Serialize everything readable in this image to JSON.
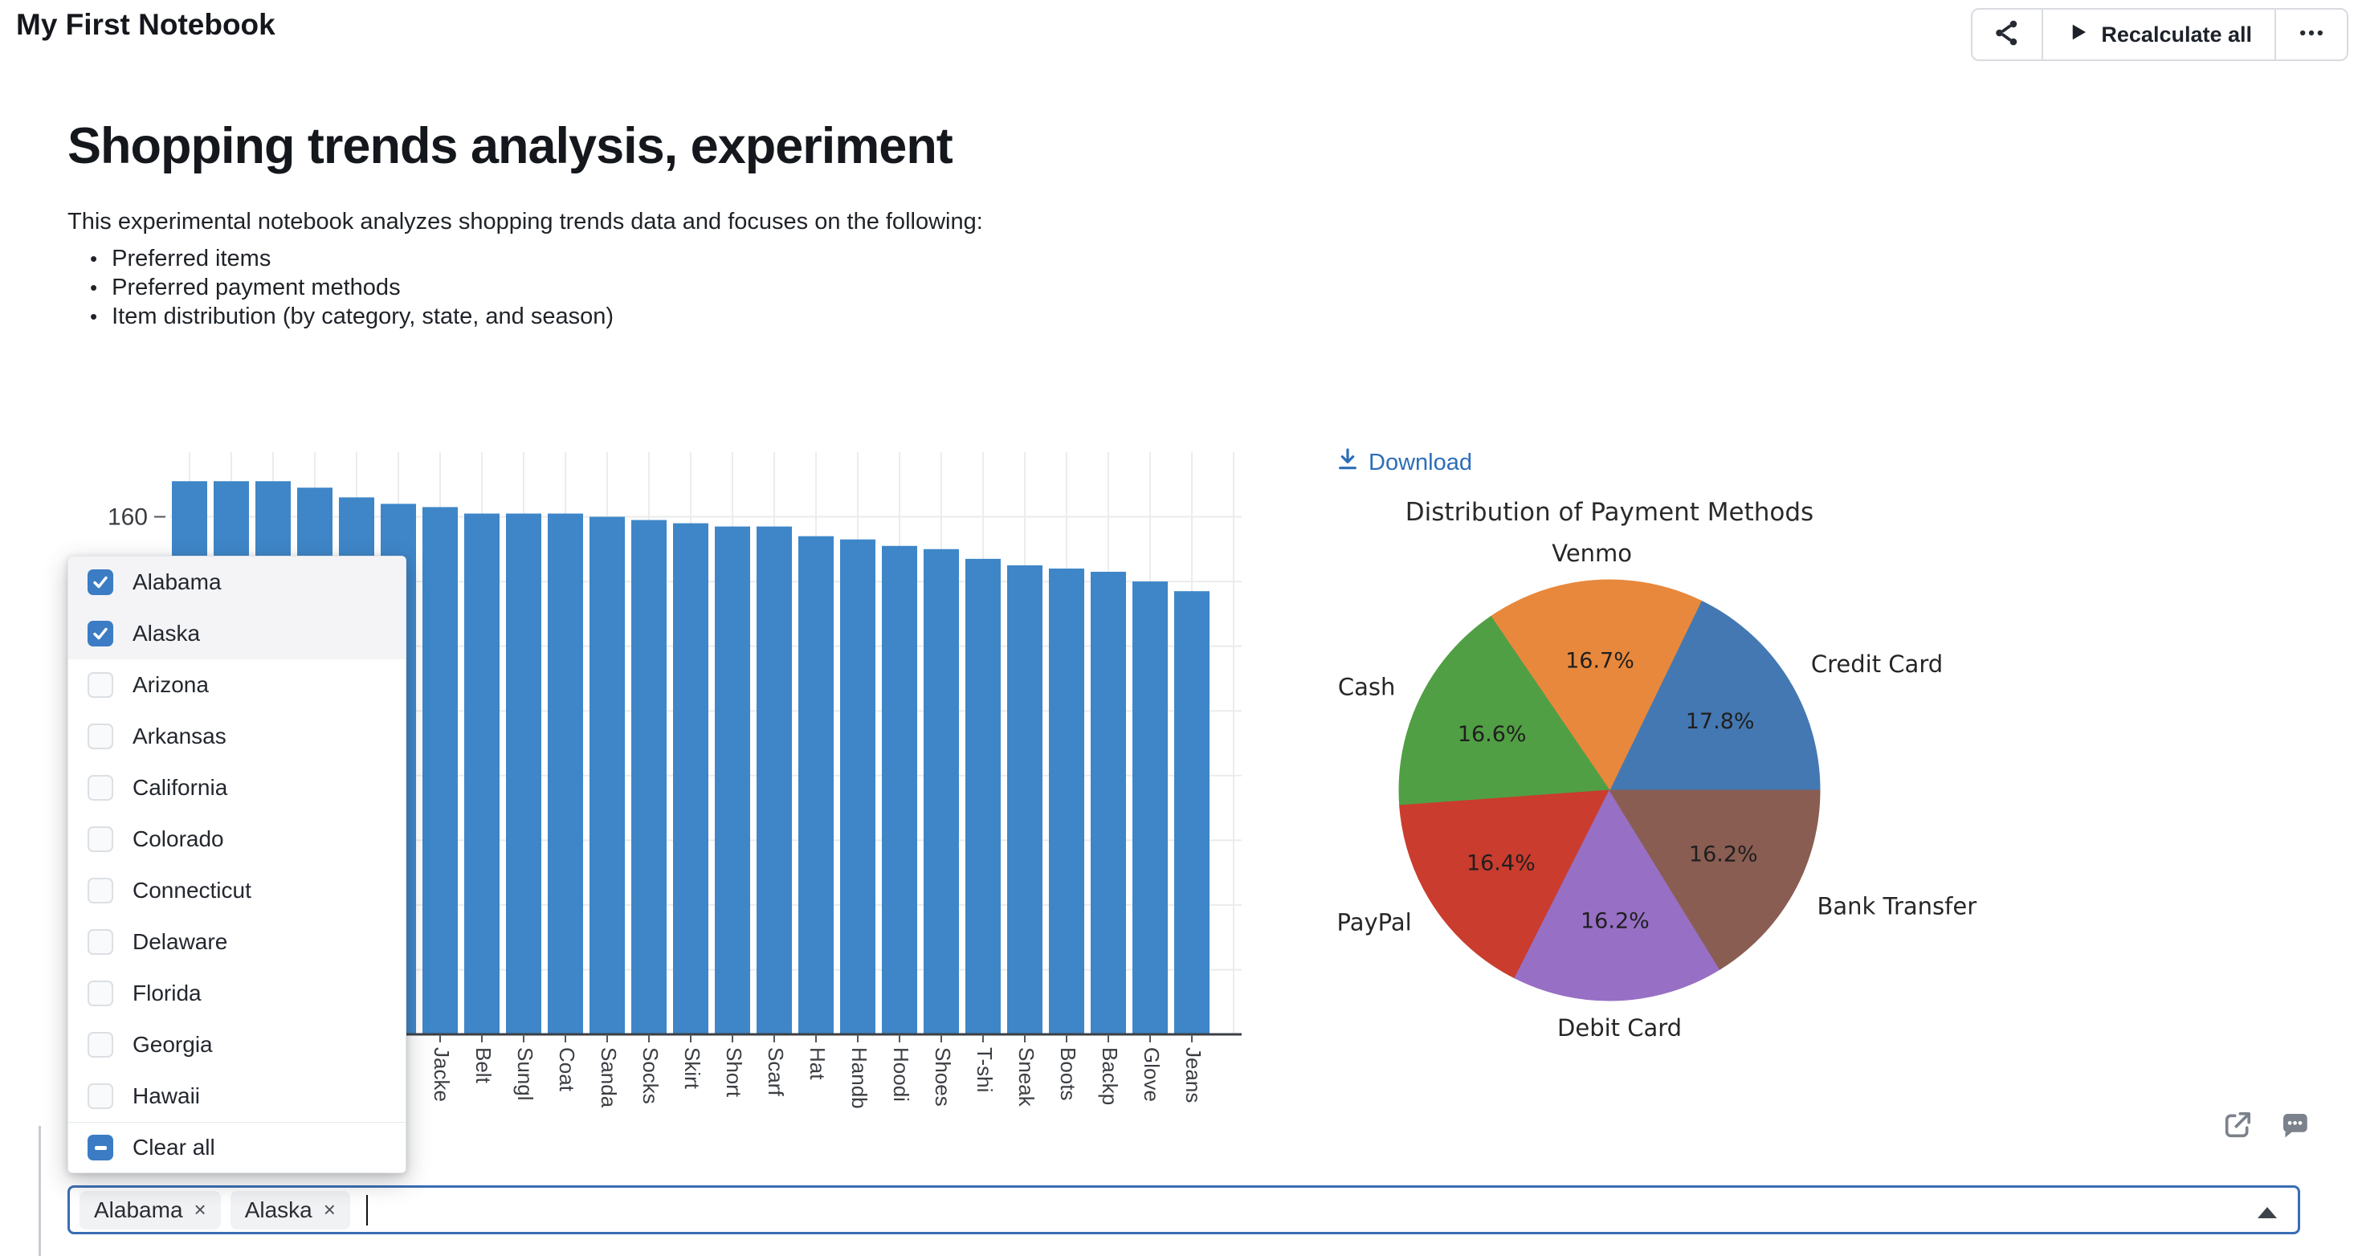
{
  "window": {
    "title": "My First Notebook"
  },
  "toolbar": {
    "share_icon": "share-icon",
    "recalculate_label": "Recalculate all",
    "more_icon": "ellipsis-icon"
  },
  "article": {
    "heading": "Shopping trends analysis, experiment",
    "intro": "This experimental notebook analyzes shopping trends data and focuses on the following:",
    "bullets": [
      "Preferred items",
      "Preferred payment methods",
      "Item distribution (by category, state, and season)"
    ]
  },
  "pie_panel": {
    "download_label": "Download"
  },
  "state_dropdown": {
    "options": [
      {
        "label": "Alabama",
        "checked": true
      },
      {
        "label": "Alaska",
        "checked": true
      },
      {
        "label": "Arizona",
        "checked": false
      },
      {
        "label": "Arkansas",
        "checked": false
      },
      {
        "label": "California",
        "checked": false
      },
      {
        "label": "Colorado",
        "checked": false
      },
      {
        "label": "Connecticut",
        "checked": false
      },
      {
        "label": "Delaware",
        "checked": false
      },
      {
        "label": "Florida",
        "checked": false
      },
      {
        "label": "Georgia",
        "checked": false
      },
      {
        "label": "Hawaii",
        "checked": false
      }
    ],
    "clear_all_label": "Clear all"
  },
  "state_select": {
    "tags": [
      "Alabama",
      "Alaska"
    ],
    "remove_symbol": "×"
  },
  "chart_data": [
    {
      "type": "bar",
      "title": "",
      "categories": [
        "",
        "",
        "",
        "",
        "",
        "",
        "Jacke",
        "Belt",
        "Sungl",
        "Coat",
        "Sanda",
        "Socks",
        "Skirt",
        "Short",
        "Scarf",
        "Hat",
        "Handb",
        "Hoodi",
        "Shoes",
        "T-shi",
        "Sneak",
        "Boots",
        "Backp",
        "Glove",
        "Jeans"
      ],
      "values": [
        171,
        171,
        171,
        169,
        166,
        164,
        163,
        161,
        161,
        161,
        160,
        159,
        158,
        157,
        157,
        154,
        153,
        151,
        150,
        147,
        145,
        144,
        143,
        140,
        137
      ],
      "bar_color": "#3e86c8",
      "ylim": [
        0,
        180
      ],
      "y_gridline_step": 20,
      "visible_y_tick": 160,
      "grid": true
    },
    {
      "type": "pie",
      "title": "Distribution of Payment Methods",
      "labels": [
        "Credit Card",
        "Venmo",
        "Cash",
        "PayPal",
        "Debit Card",
        "Bank Transfer"
      ],
      "values": [
        17.8,
        16.7,
        16.6,
        16.4,
        16.2,
        16.2
      ],
      "pct_labels": [
        "17.8%",
        "16.7%",
        "16.6%",
        "16.4%",
        "16.2%",
        "16.2%"
      ],
      "colors": [
        "#4478b2",
        "#e8883c",
        "#519f44",
        "#ca3c2e",
        "#9770c5",
        "#8a5d52"
      ],
      "start_angle_deg": 0,
      "direction": "counterclockwise",
      "legend": "none"
    }
  ]
}
